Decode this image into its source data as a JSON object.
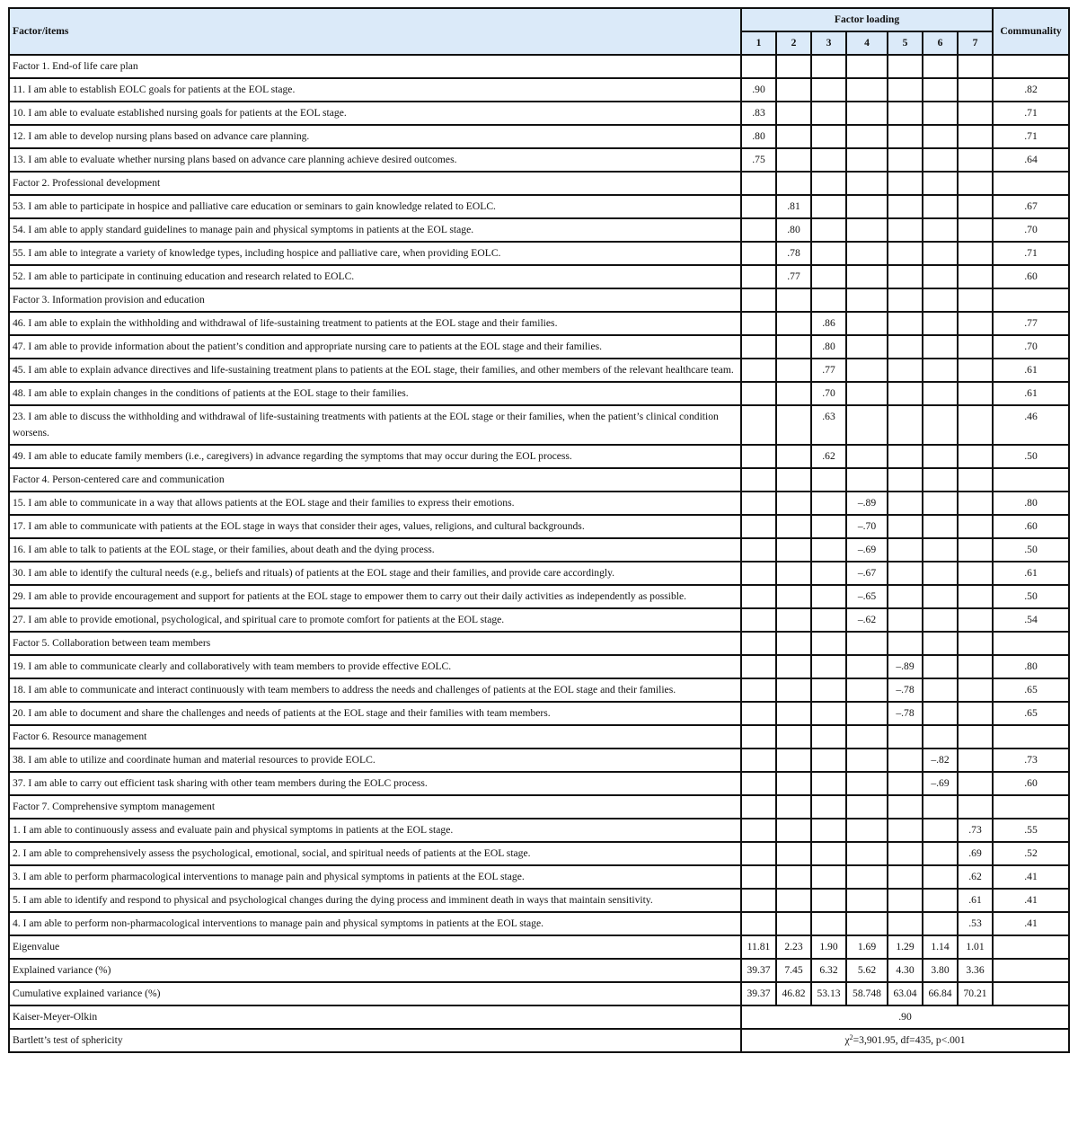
{
  "header": {
    "items_label": "Factor/items",
    "loading_label": "Factor loading",
    "factors": [
      "1",
      "2",
      "3",
      "4",
      "5",
      "6",
      "7"
    ],
    "communality_label": "Communality"
  },
  "rows": [
    {
      "type": "factor",
      "label": "Factor 1. End-of life care plan"
    },
    {
      "type": "item",
      "label": "11. I am able to establish EOLC goals for patients at the EOL stage.",
      "loadings": [
        ".90",
        "",
        "",
        "",
        "",
        "",
        ""
      ],
      "communality": ".82"
    },
    {
      "type": "item",
      "label": "10. I am able to evaluate established nursing goals for patients at the EOL stage.",
      "loadings": [
        ".83",
        "",
        "",
        "",
        "",
        "",
        ""
      ],
      "communality": ".71"
    },
    {
      "type": "item",
      "label": "12. I am able to develop nursing plans based on advance care planning.",
      "loadings": [
        ".80",
        "",
        "",
        "",
        "",
        "",
        ""
      ],
      "communality": ".71"
    },
    {
      "type": "item",
      "label": "13. I am able to evaluate whether nursing plans based on advance care planning achieve desired outcomes.",
      "loadings": [
        ".75",
        "",
        "",
        "",
        "",
        "",
        ""
      ],
      "communality": ".64"
    },
    {
      "type": "factor",
      "label": "Factor 2. Professional development"
    },
    {
      "type": "item",
      "label": "53. I am able to participate in hospice and palliative care education or seminars to gain knowledge related to EOLC.",
      "loadings": [
        "",
        ".81",
        "",
        "",
        "",
        "",
        ""
      ],
      "communality": ".67"
    },
    {
      "type": "item",
      "label": "54. I am able to apply standard guidelines to manage pain and physical symptoms in patients at the EOL stage.",
      "loadings": [
        "",
        ".80",
        "",
        "",
        "",
        "",
        ""
      ],
      "communality": ".70"
    },
    {
      "type": "item",
      "label": "55. I am able to integrate a variety of knowledge types, including hospice and palliative care, when providing EOLC.",
      "loadings": [
        "",
        ".78",
        "",
        "",
        "",
        "",
        ""
      ],
      "communality": ".71"
    },
    {
      "type": "item",
      "label": "52. I am able to participate in continuing education and research related to EOLC.",
      "loadings": [
        "",
        ".77",
        "",
        "",
        "",
        "",
        ""
      ],
      "communality": ".60"
    },
    {
      "type": "factor",
      "label": "Factor 3. Information provision and education"
    },
    {
      "type": "item",
      "label": "46. I am able to explain the withholding and withdrawal of life-sustaining treatment to patients at the EOL stage and their families.",
      "loadings": [
        "",
        "",
        ".86",
        "",
        "",
        "",
        ""
      ],
      "communality": ".77"
    },
    {
      "type": "item",
      "label": "47. I am able to provide information about the patient’s condition and appropriate nursing care to patients at the EOL stage and their families.",
      "loadings": [
        "",
        "",
        ".80",
        "",
        "",
        "",
        ""
      ],
      "communality": ".70"
    },
    {
      "type": "item",
      "label": "45. I am able to explain advance directives and life-sustaining treatment plans to patients at the EOL stage, their families, and other members of the relevant healthcare team.",
      "loadings": [
        "",
        "",
        ".77",
        "",
        "",
        "",
        ""
      ],
      "communality": ".61"
    },
    {
      "type": "item",
      "label": "48. I am able to explain changes in the conditions of patients at the EOL stage to their families.",
      "loadings": [
        "",
        "",
        ".70",
        "",
        "",
        "",
        ""
      ],
      "communality": ".61"
    },
    {
      "type": "item",
      "label": "23. I am able to discuss the withholding and withdrawal of life-sustaining treatments with patients at the EOL stage or their families, when the patient’s clinical condition worsens.",
      "loadings": [
        "",
        "",
        ".63",
        "",
        "",
        "",
        ""
      ],
      "communality": ".46"
    },
    {
      "type": "item",
      "label": "49. I am able to educate family members (i.e., caregivers) in advance regarding the symptoms that may occur during the EOL process.",
      "loadings": [
        "",
        "",
        ".62",
        "",
        "",
        "",
        ""
      ],
      "communality": ".50"
    },
    {
      "type": "factor",
      "label": "Factor 4. Person-centered care and communication"
    },
    {
      "type": "item",
      "label": "15. I am able to communicate in a way that allows patients at the EOL stage and their families to express their emotions.",
      "loadings": [
        "",
        "",
        "",
        "–.89",
        "",
        "",
        ""
      ],
      "communality": ".80"
    },
    {
      "type": "item",
      "label": "17. I am able to communicate with patients at the EOL stage in ways that consider their ages, values, religions, and cultural backgrounds.",
      "loadings": [
        "",
        "",
        "",
        "–.70",
        "",
        "",
        ""
      ],
      "communality": ".60"
    },
    {
      "type": "item",
      "label": "16. I am able to talk to patients at the EOL stage, or their families, about death and the dying process.",
      "loadings": [
        "",
        "",
        "",
        "–.69",
        "",
        "",
        ""
      ],
      "communality": ".50"
    },
    {
      "type": "item",
      "label": "30. I am able to identify the cultural needs (e.g., beliefs and rituals) of patients at the EOL stage and their families, and provide care accordingly.",
      "loadings": [
        "",
        "",
        "",
        "–.67",
        "",
        "",
        ""
      ],
      "communality": ".61"
    },
    {
      "type": "item",
      "label": "29. I am able to provide encouragement and support for patients at the EOL stage to empower them to carry out their daily activities as independently as possible.",
      "loadings": [
        "",
        "",
        "",
        "–.65",
        "",
        "",
        ""
      ],
      "communality": ".50"
    },
    {
      "type": "item",
      "label": "27. I am able to provide emotional, psychological, and spiritual care to promote comfort for patients at the EOL stage.",
      "loadings": [
        "",
        "",
        "",
        "–.62",
        "",
        "",
        ""
      ],
      "communality": ".54"
    },
    {
      "type": "factor",
      "label": "Factor 5. Collaboration between team members"
    },
    {
      "type": "item",
      "label": "19. I am able to communicate clearly and collaboratively with team members to provide effective EOLC.",
      "loadings": [
        "",
        "",
        "",
        "",
        "–.89",
        "",
        ""
      ],
      "communality": ".80"
    },
    {
      "type": "item",
      "label": "18. I am able to communicate and interact continuously with team members to address the needs and challenges of patients at the EOL stage and their families.",
      "loadings": [
        "",
        "",
        "",
        "",
        "–.78",
        "",
        ""
      ],
      "communality": ".65"
    },
    {
      "type": "item",
      "label": "20. I am able to document and share the challenges and needs of patients at the EOL stage and their families with team members.",
      "loadings": [
        "",
        "",
        "",
        "",
        "–.78",
        "",
        ""
      ],
      "communality": ".65"
    },
    {
      "type": "factor",
      "label": "Factor 6. Resource management"
    },
    {
      "type": "item",
      "label": "38. I am able to utilize and coordinate human and material resources to provide EOLC.",
      "loadings": [
        "",
        "",
        "",
        "",
        "",
        "–.82",
        ""
      ],
      "communality": ".73"
    },
    {
      "type": "item",
      "label": "37. I am able to carry out efficient task sharing with other team members during the EOLC process.",
      "loadings": [
        "",
        "",
        "",
        "",
        "",
        "–.69",
        ""
      ],
      "communality": ".60"
    },
    {
      "type": "factor",
      "label": "Factor 7. Comprehensive symptom management"
    },
    {
      "type": "item",
      "label": "1. I am able to continuously assess and evaluate pain and physical symptoms in patients at the EOL stage.",
      "loadings": [
        "",
        "",
        "",
        "",
        "",
        "",
        ".73"
      ],
      "communality": ".55"
    },
    {
      "type": "item",
      "label": "2. I am able to comprehensively assess the psychological, emotional, social, and spiritual needs of patients at the EOL stage.",
      "loadings": [
        "",
        "",
        "",
        "",
        "",
        "",
        ".69"
      ],
      "communality": ".52"
    },
    {
      "type": "item",
      "label": "3. I am able to perform pharmacological interventions to manage pain and physical symptoms in patients at the EOL stage.",
      "loadings": [
        "",
        "",
        "",
        "",
        "",
        "",
        ".62"
      ],
      "communality": ".41"
    },
    {
      "type": "item",
      "label": "5. I am able to identify and respond to physical and psychological changes during the dying process and imminent death in ways that maintain sensitivity.",
      "loadings": [
        "",
        "",
        "",
        "",
        "",
        "",
        ".61"
      ],
      "communality": ".41"
    },
    {
      "type": "item",
      "label": "4. I am able to perform non-pharmacological interventions to manage pain and physical symptoms in patients at the EOL stage.",
      "loadings": [
        "",
        "",
        "",
        "",
        "",
        "",
        ".53"
      ],
      "communality": ".41"
    },
    {
      "type": "item",
      "label": "Eigenvalue",
      "loadings": [
        "11.81",
        "2.23",
        "1.90",
        "1.69",
        "1.29",
        "1.14",
        "1.01"
      ],
      "communality": ""
    },
    {
      "type": "item",
      "label": "Explained variance (%)",
      "loadings": [
        "39.37",
        "7.45",
        "6.32",
        "5.62",
        "4.30",
        "3.80",
        "3.36"
      ],
      "communality": ""
    },
    {
      "type": "item",
      "label": "Cumulative explained variance (%)",
      "loadings": [
        "39.37",
        "46.82",
        "53.13",
        "58.748",
        "63.04",
        "66.84",
        "70.21"
      ],
      "communality": ""
    }
  ],
  "kmo": {
    "label": "Kaiser-Meyer-Olkin",
    "value": ".90"
  },
  "bartlett": {
    "label": "Bartlett’s test of sphericity",
    "chi": "χ",
    "sup": "2",
    "value": "=3,901.95, df=435, p<.001"
  }
}
